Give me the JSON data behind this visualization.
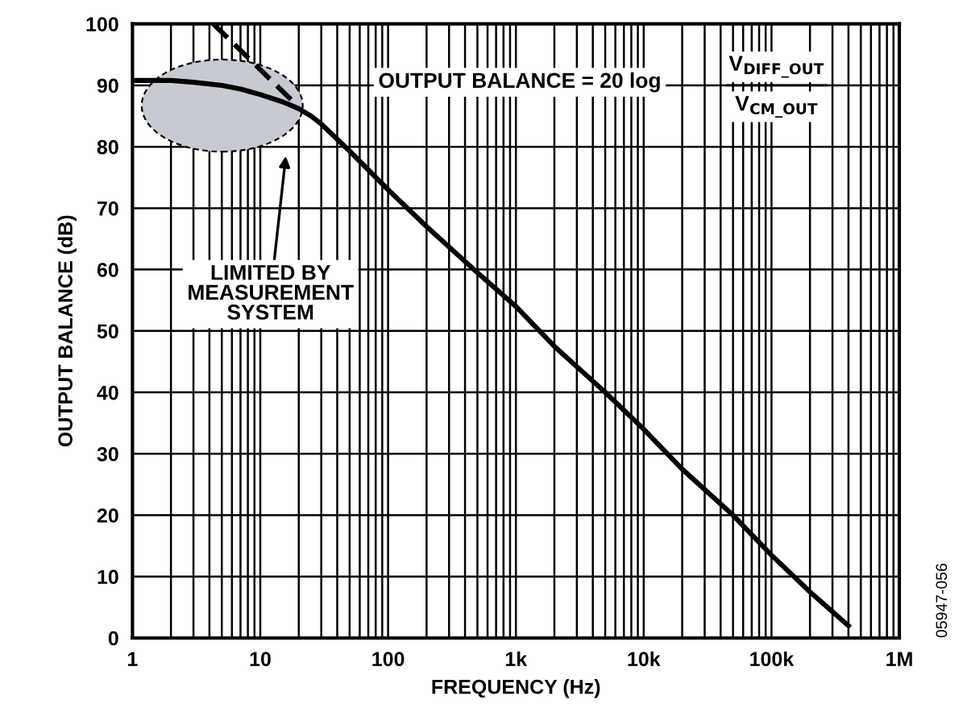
{
  "chart_data": {
    "type": "line",
    "xlabel": "FREQUENCY (Hz)",
    "ylabel": "OUTPUT BALANCE (dB)",
    "log": "x",
    "xlim": [
      1,
      1000000
    ],
    "xticks": [
      1,
      10,
      100,
      {
        "value": 1000,
        "label": "1k"
      },
      {
        "value": 10000,
        "label": "10k"
      },
      {
        "value": 100000,
        "label": "100k"
      },
      {
        "value": 1000000,
        "label": "1M"
      }
    ],
    "ylim": [
      0,
      100
    ],
    "yticks": [
      0,
      10,
      20,
      30,
      40,
      50,
      60,
      70,
      80,
      90,
      100
    ],
    "grid": true,
    "legend": false,
    "series": [
      {
        "color": "#000000",
        "line_style": "solid",
        "x": [
          1,
          2,
          3,
          5,
          7,
          10,
          15,
          20,
          25,
          30,
          50,
          100,
          200,
          500,
          1000,
          2000,
          5000,
          10000,
          20000,
          50000,
          100000,
          200000,
          400000
        ],
        "values": [
          90.8,
          90.8,
          90.5,
          90,
          89.4,
          88.5,
          87.3,
          86.2,
          85,
          83.7,
          79.3,
          73,
          67,
          59.5,
          54,
          47.5,
          40,
          34,
          27.5,
          20,
          13.5,
          7.5,
          2
        ]
      },
      {
        "color": "#000000",
        "line_style": "dashed",
        "x": [
          4.3,
          18.8
        ],
        "values": [
          100,
          87
        ]
      }
    ],
    "annotations": [
      "OUTPUT BALANCE = 20 log",
      "V$_{DIFF_OUT}$",
      "V$_{CM_OUT}$",
      "LIMITED BY\nMEASUREMENT\nSYSTEM",
      "05947-056"
    ]
  }
}
